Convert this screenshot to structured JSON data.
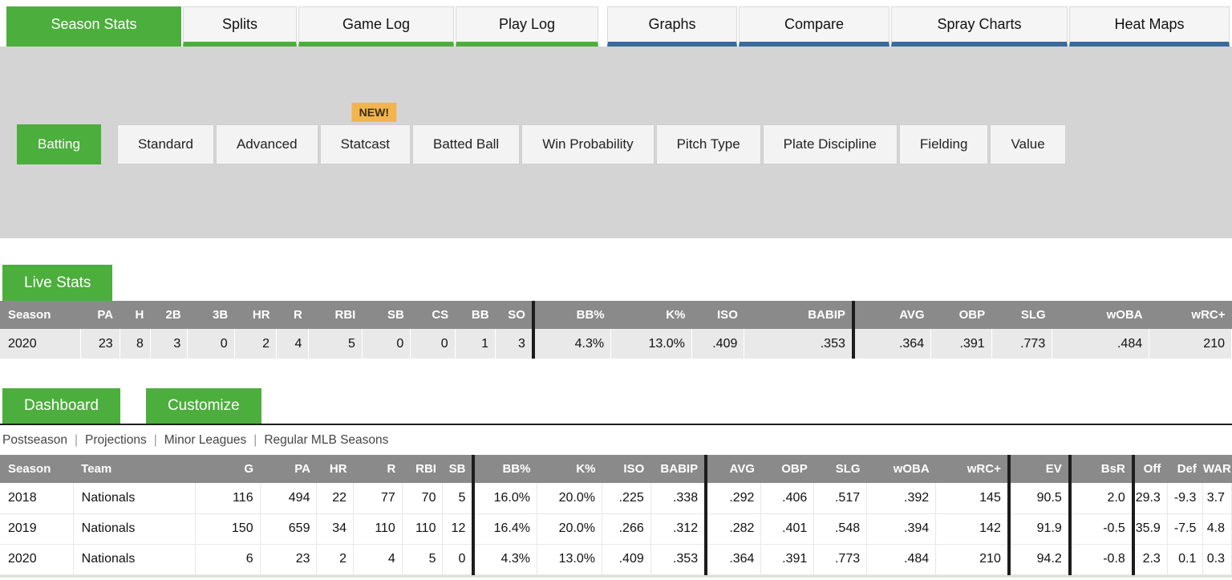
{
  "colors": {
    "green": "#4CAE3C",
    "blue": "#3A6A9B",
    "badge_orange": "#F2B54E",
    "header_gray": "#8a8a8a"
  },
  "top_tabs": {
    "left": [
      {
        "label": "Season Stats",
        "active": true
      },
      {
        "label": "Splits",
        "active": false
      },
      {
        "label": "Game Log",
        "active": false
      },
      {
        "label": "Play Log",
        "active": false
      }
    ],
    "right": [
      {
        "label": "Graphs",
        "active": false
      },
      {
        "label": "Compare",
        "active": false
      },
      {
        "label": "Spray Charts",
        "active": false
      },
      {
        "label": "Heat Maps",
        "active": false
      }
    ]
  },
  "stat_tabs": [
    {
      "label": "Batting",
      "active": true
    },
    {
      "label": "Standard"
    },
    {
      "label": "Advanced"
    },
    {
      "label": "Statcast",
      "badge": "NEW!"
    },
    {
      "label": "Batted Ball"
    },
    {
      "label": "Win Probability"
    },
    {
      "label": "Pitch Type"
    },
    {
      "label": "Plate Discipline"
    },
    {
      "label": "Fielding"
    },
    {
      "label": "Value"
    }
  ],
  "live_stats": {
    "title": "Live Stats",
    "table": {
      "columns": [
        "Season",
        "PA",
        "H",
        "2B",
        "3B",
        "HR",
        "R",
        "RBI",
        "SB",
        "CS",
        "BB",
        "SO",
        "BB%",
        "K%",
        "ISO",
        "BABIP",
        "AVG",
        "OBP",
        "SLG",
        "wOBA",
        "wRC+"
      ],
      "rows": [
        [
          "2020",
          "23",
          "8",
          "3",
          "0",
          "2",
          "4",
          "5",
          "0",
          "0",
          "1",
          "3",
          "4.3%",
          "13.0%",
          ".409",
          ".353",
          ".364",
          ".391",
          ".773",
          ".484",
          "210"
        ]
      ]
    }
  },
  "dashboard": {
    "tabs": [
      "Dashboard",
      "Customize"
    ],
    "filters": [
      "Postseason",
      "Projections",
      "Minor Leagues",
      "Regular MLB Seasons"
    ],
    "table": {
      "columns": [
        "Season",
        "Team",
        "G",
        "PA",
        "HR",
        "R",
        "RBI",
        "SB",
        "BB%",
        "K%",
        "ISO",
        "BABIP",
        "AVG",
        "OBP",
        "SLG",
        "wOBA",
        "wRC+",
        "EV",
        "BsR",
        "Off",
        "Def",
        "WAR"
      ],
      "rows": [
        [
          "2018",
          "Nationals",
          "116",
          "494",
          "22",
          "77",
          "70",
          "5",
          "16.0%",
          "20.0%",
          ".225",
          ".338",
          ".292",
          ".406",
          ".517",
          ".392",
          "145",
          "90.5",
          "2.0",
          "29.3",
          "-9.3",
          "3.7"
        ],
        [
          "2019",
          "Nationals",
          "150",
          "659",
          "34",
          "110",
          "110",
          "12",
          "16.4%",
          "20.0%",
          ".266",
          ".312",
          ".282",
          ".401",
          ".548",
          ".394",
          "142",
          "91.9",
          "-0.5",
          "35.9",
          "-7.5",
          "4.8"
        ],
        [
          "2020",
          "Nationals",
          "6",
          "23",
          "2",
          "4",
          "5",
          "0",
          "4.3%",
          "13.0%",
          ".409",
          ".353",
          ".364",
          ".391",
          ".773",
          ".484",
          "210",
          "94.2",
          "-0.8",
          "2.3",
          "0.1",
          "0.3"
        ]
      ]
    }
  }
}
